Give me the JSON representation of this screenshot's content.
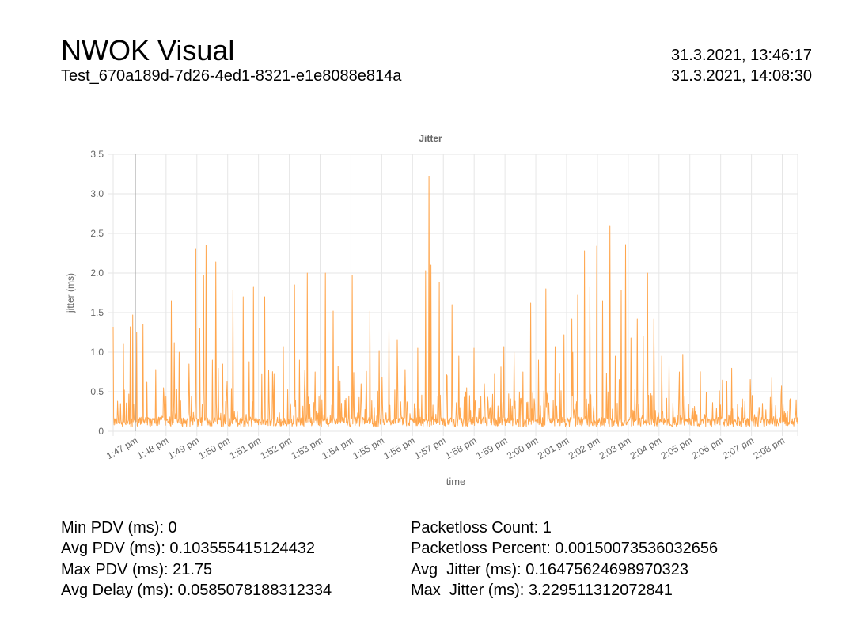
{
  "header": {
    "title": "NWOK Visual",
    "test_id": "Test_670a189d-7d26-4ed1-8321-e1e8088e814a",
    "start_time": "31.3.2021, 13:46:17",
    "end_time": "31.3.2021, 14:08:30"
  },
  "stats": {
    "min_pdv": "Min PDV (ms): 0",
    "avg_pdv": "Avg PDV (ms): 0.103555415124432",
    "max_pdv": "Max PDV (ms): 21.75",
    "avg_delay": "Avg Delay (ms): 0.0585078188312334",
    "packetloss_count": "Packetloss Count: 1",
    "packetloss_percent": "Packetloss Percent: 0.00150073536032656",
    "avg_jitter": "Avg  Jitter (ms): 0.16475624698970323",
    "max_jitter": "Max  Jitter (ms): 3.229511312072841"
  },
  "chart_data": {
    "type": "line",
    "title": "Jitter",
    "xlabel": "time",
    "ylabel": "jitter (ms)",
    "ylim": [
      0,
      3.5
    ],
    "yticks": [
      "0",
      "0.5",
      "1.0",
      "1.5",
      "2.0",
      "2.5",
      "3.0",
      "3.5"
    ],
    "xlim": [
      "13:46:17",
      "14:08:30"
    ],
    "xticks": [
      "1:47 pm",
      "1:48 pm",
      "1:49 pm",
      "1:50 pm",
      "1:51 pm",
      "1:52 pm",
      "1:53 pm",
      "1:54 pm",
      "1:55 pm",
      "1:56 pm",
      "1:57 pm",
      "1:58 pm",
      "1:59 pm",
      "2:00 pm",
      "2:01 pm",
      "2:02 pm",
      "2:03 pm",
      "2:04 pm",
      "2:05 pm",
      "2:06 pm",
      "2:07 pm",
      "2:08 pm"
    ],
    "grid": true,
    "line_color": "#ffa64d",
    "series": [
      {
        "peaks": [
          {
            "t": "13:46:17",
            "v": 1.32
          },
          {
            "t": "13:46:26",
            "v": 0.38
          },
          {
            "t": "13:46:37",
            "v": 1.1
          },
          {
            "t": "13:46:50",
            "v": 1.32
          },
          {
            "t": "13:46:55",
            "v": 1.47
          },
          {
            "t": "13:47:03",
            "v": 1.25
          },
          {
            "t": "13:47:15",
            "v": 1.35
          },
          {
            "t": "13:47:23",
            "v": 0.62
          },
          {
            "t": "13:47:40",
            "v": 0.78
          },
          {
            "t": "13:47:55",
            "v": 0.55
          },
          {
            "t": "13:48:10",
            "v": 1.65
          },
          {
            "t": "13:48:16",
            "v": 1.12
          },
          {
            "t": "13:48:26",
            "v": 1.0
          },
          {
            "t": "13:48:45",
            "v": 0.85
          },
          {
            "t": "13:48:58",
            "v": 2.3
          },
          {
            "t": "13:49:06",
            "v": 1.3
          },
          {
            "t": "13:49:13",
            "v": 1.97
          },
          {
            "t": "13:49:18",
            "v": 2.35
          },
          {
            "t": "13:49:30",
            "v": 0.9
          },
          {
            "t": "13:49:37",
            "v": 2.14
          },
          {
            "t": "13:49:50",
            "v": 0.85
          },
          {
            "t": "13:50:10",
            "v": 1.78
          },
          {
            "t": "13:50:30",
            "v": 1.7
          },
          {
            "t": "13:50:42",
            "v": 0.88
          },
          {
            "t": "13:50:50",
            "v": 1.82
          },
          {
            "t": "13:51:12",
            "v": 1.7
          },
          {
            "t": "13:51:30",
            "v": 0.72
          },
          {
            "t": "13:51:48",
            "v": 1.07
          },
          {
            "t": "13:52:10",
            "v": 1.85
          },
          {
            "t": "13:52:20",
            "v": 0.9
          },
          {
            "t": "13:52:35",
            "v": 2.0
          },
          {
            "t": "13:52:50",
            "v": 0.75
          },
          {
            "t": "13:53:10",
            "v": 2.0
          },
          {
            "t": "13:53:25",
            "v": 1.52
          },
          {
            "t": "13:53:35",
            "v": 0.82
          },
          {
            "t": "13:54:03",
            "v": 1.97
          },
          {
            "t": "13:54:20",
            "v": 0.6
          },
          {
            "t": "13:54:37",
            "v": 1.52
          },
          {
            "t": "13:54:55",
            "v": 1.02
          },
          {
            "t": "13:55:14",
            "v": 1.3
          },
          {
            "t": "13:55:30",
            "v": 1.15
          },
          {
            "t": "13:55:45",
            "v": 0.78
          },
          {
            "t": "13:56:10",
            "v": 1.05
          },
          {
            "t": "13:56:25",
            "v": 2.03
          },
          {
            "t": "13:56:32",
            "v": 3.22
          },
          {
            "t": "13:56:36",
            "v": 2.1
          },
          {
            "t": "13:56:52",
            "v": 1.88
          },
          {
            "t": "13:57:07",
            "v": 0.7
          },
          {
            "t": "13:57:17",
            "v": 1.6
          },
          {
            "t": "13:57:30",
            "v": 0.95
          },
          {
            "t": "13:57:45",
            "v": 0.55
          },
          {
            "t": "13:58:00",
            "v": 1.05
          },
          {
            "t": "13:58:20",
            "v": 0.6
          },
          {
            "t": "13:58:40",
            "v": 0.72
          },
          {
            "t": "13:58:58",
            "v": 1.07
          },
          {
            "t": "13:59:18",
            "v": 1.0
          },
          {
            "t": "13:59:35",
            "v": 0.75
          },
          {
            "t": "13:59:50",
            "v": 1.62
          },
          {
            "t": "14:00:05",
            "v": 0.9
          },
          {
            "t": "14:00:20",
            "v": 1.8
          },
          {
            "t": "14:00:38",
            "v": 1.07
          },
          {
            "t": "14:00:55",
            "v": 1.22
          },
          {
            "t": "14:01:10",
            "v": 1.42
          },
          {
            "t": "14:01:22",
            "v": 1.72
          },
          {
            "t": "14:01:35",
            "v": 2.28
          },
          {
            "t": "14:01:45",
            "v": 1.82
          },
          {
            "t": "14:01:59",
            "v": 2.34
          },
          {
            "t": "14:02:10",
            "v": 1.65
          },
          {
            "t": "14:02:24",
            "v": 2.6
          },
          {
            "t": "14:02:35",
            "v": 0.95
          },
          {
            "t": "14:02:46",
            "v": 1.78
          },
          {
            "t": "14:02:55",
            "v": 2.36
          },
          {
            "t": "14:03:05",
            "v": 1.18
          },
          {
            "t": "14:03:18",
            "v": 1.42
          },
          {
            "t": "14:03:29",
            "v": 1.2
          },
          {
            "t": "14:03:38",
            "v": 2.0
          },
          {
            "t": "14:03:50",
            "v": 1.42
          },
          {
            "t": "14:04:05",
            "v": 0.95
          },
          {
            "t": "14:04:20",
            "v": 0.85
          },
          {
            "t": "14:04:40",
            "v": 0.75
          }
        ]
      }
    ]
  }
}
